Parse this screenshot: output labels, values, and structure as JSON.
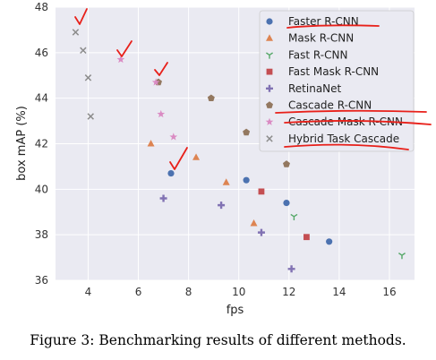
{
  "caption": "Figure 3: Benchmarking results of different methods.",
  "chart_data": {
    "type": "scatter",
    "title": "",
    "xlabel": "fps",
    "ylabel": "box mAP (%)",
    "xlim": [
      2.7,
      17.0
    ],
    "ylim": [
      36,
      48
    ],
    "xticks": [
      4,
      6,
      8,
      10,
      12,
      14,
      16
    ],
    "yticks": [
      36,
      38,
      40,
      42,
      44,
      46,
      48
    ],
    "grid": true,
    "legend_position": "top-right",
    "series": [
      {
        "name": "Faster R-CNN",
        "marker": "circle",
        "color": "#4c72b0",
        "points": [
          {
            "x": 7.3,
            "y": 40.7
          },
          {
            "x": 10.3,
            "y": 40.4
          },
          {
            "x": 11.9,
            "y": 39.4
          },
          {
            "x": 13.6,
            "y": 37.7
          }
        ]
      },
      {
        "name": "Mask R-CNN",
        "marker": "triangle",
        "color": "#dd8452",
        "points": [
          {
            "x": 6.5,
            "y": 42.0
          },
          {
            "x": 8.3,
            "y": 41.4
          },
          {
            "x": 9.5,
            "y": 40.3
          },
          {
            "x": 10.6,
            "y": 38.5
          }
        ]
      },
      {
        "name": "Fast R-CNN",
        "marker": "tri-down",
        "color": "#55a868",
        "points": [
          {
            "x": 12.2,
            "y": 38.8
          },
          {
            "x": 16.5,
            "y": 37.1
          }
        ]
      },
      {
        "name": "Fast Mask R-CNN",
        "marker": "square",
        "color": "#c44e52",
        "points": [
          {
            "x": 10.9,
            "y": 39.9
          },
          {
            "x": 12.7,
            "y": 37.9
          }
        ]
      },
      {
        "name": "RetinaNet",
        "marker": "plus",
        "color": "#8172b3",
        "points": [
          {
            "x": 7.0,
            "y": 39.6
          },
          {
            "x": 9.3,
            "y": 39.3
          },
          {
            "x": 10.9,
            "y": 38.1
          },
          {
            "x": 12.1,
            "y": 36.5
          }
        ]
      },
      {
        "name": "Cascade R-CNN",
        "marker": "pentagon",
        "color": "#937860",
        "points": [
          {
            "x": 6.8,
            "y": 44.7
          },
          {
            "x": 8.9,
            "y": 44.0
          },
          {
            "x": 10.3,
            "y": 42.5
          },
          {
            "x": 11.9,
            "y": 41.1
          }
        ]
      },
      {
        "name": "Cascade Mask R-CNN",
        "marker": "star",
        "color": "#da8bc3",
        "points": [
          {
            "x": 5.3,
            "y": 45.7
          },
          {
            "x": 6.7,
            "y": 44.7
          },
          {
            "x": 6.9,
            "y": 43.3
          },
          {
            "x": 7.4,
            "y": 42.3
          }
        ]
      },
      {
        "name": "Hybrid Task Cascade",
        "marker": "x",
        "color": "#8c8c8c",
        "points": [
          {
            "x": 3.5,
            "y": 46.9
          },
          {
            "x": 3.8,
            "y": 46.1
          },
          {
            "x": 4.0,
            "y": 44.9
          },
          {
            "x": 4.1,
            "y": 43.2
          }
        ]
      }
    ]
  }
}
